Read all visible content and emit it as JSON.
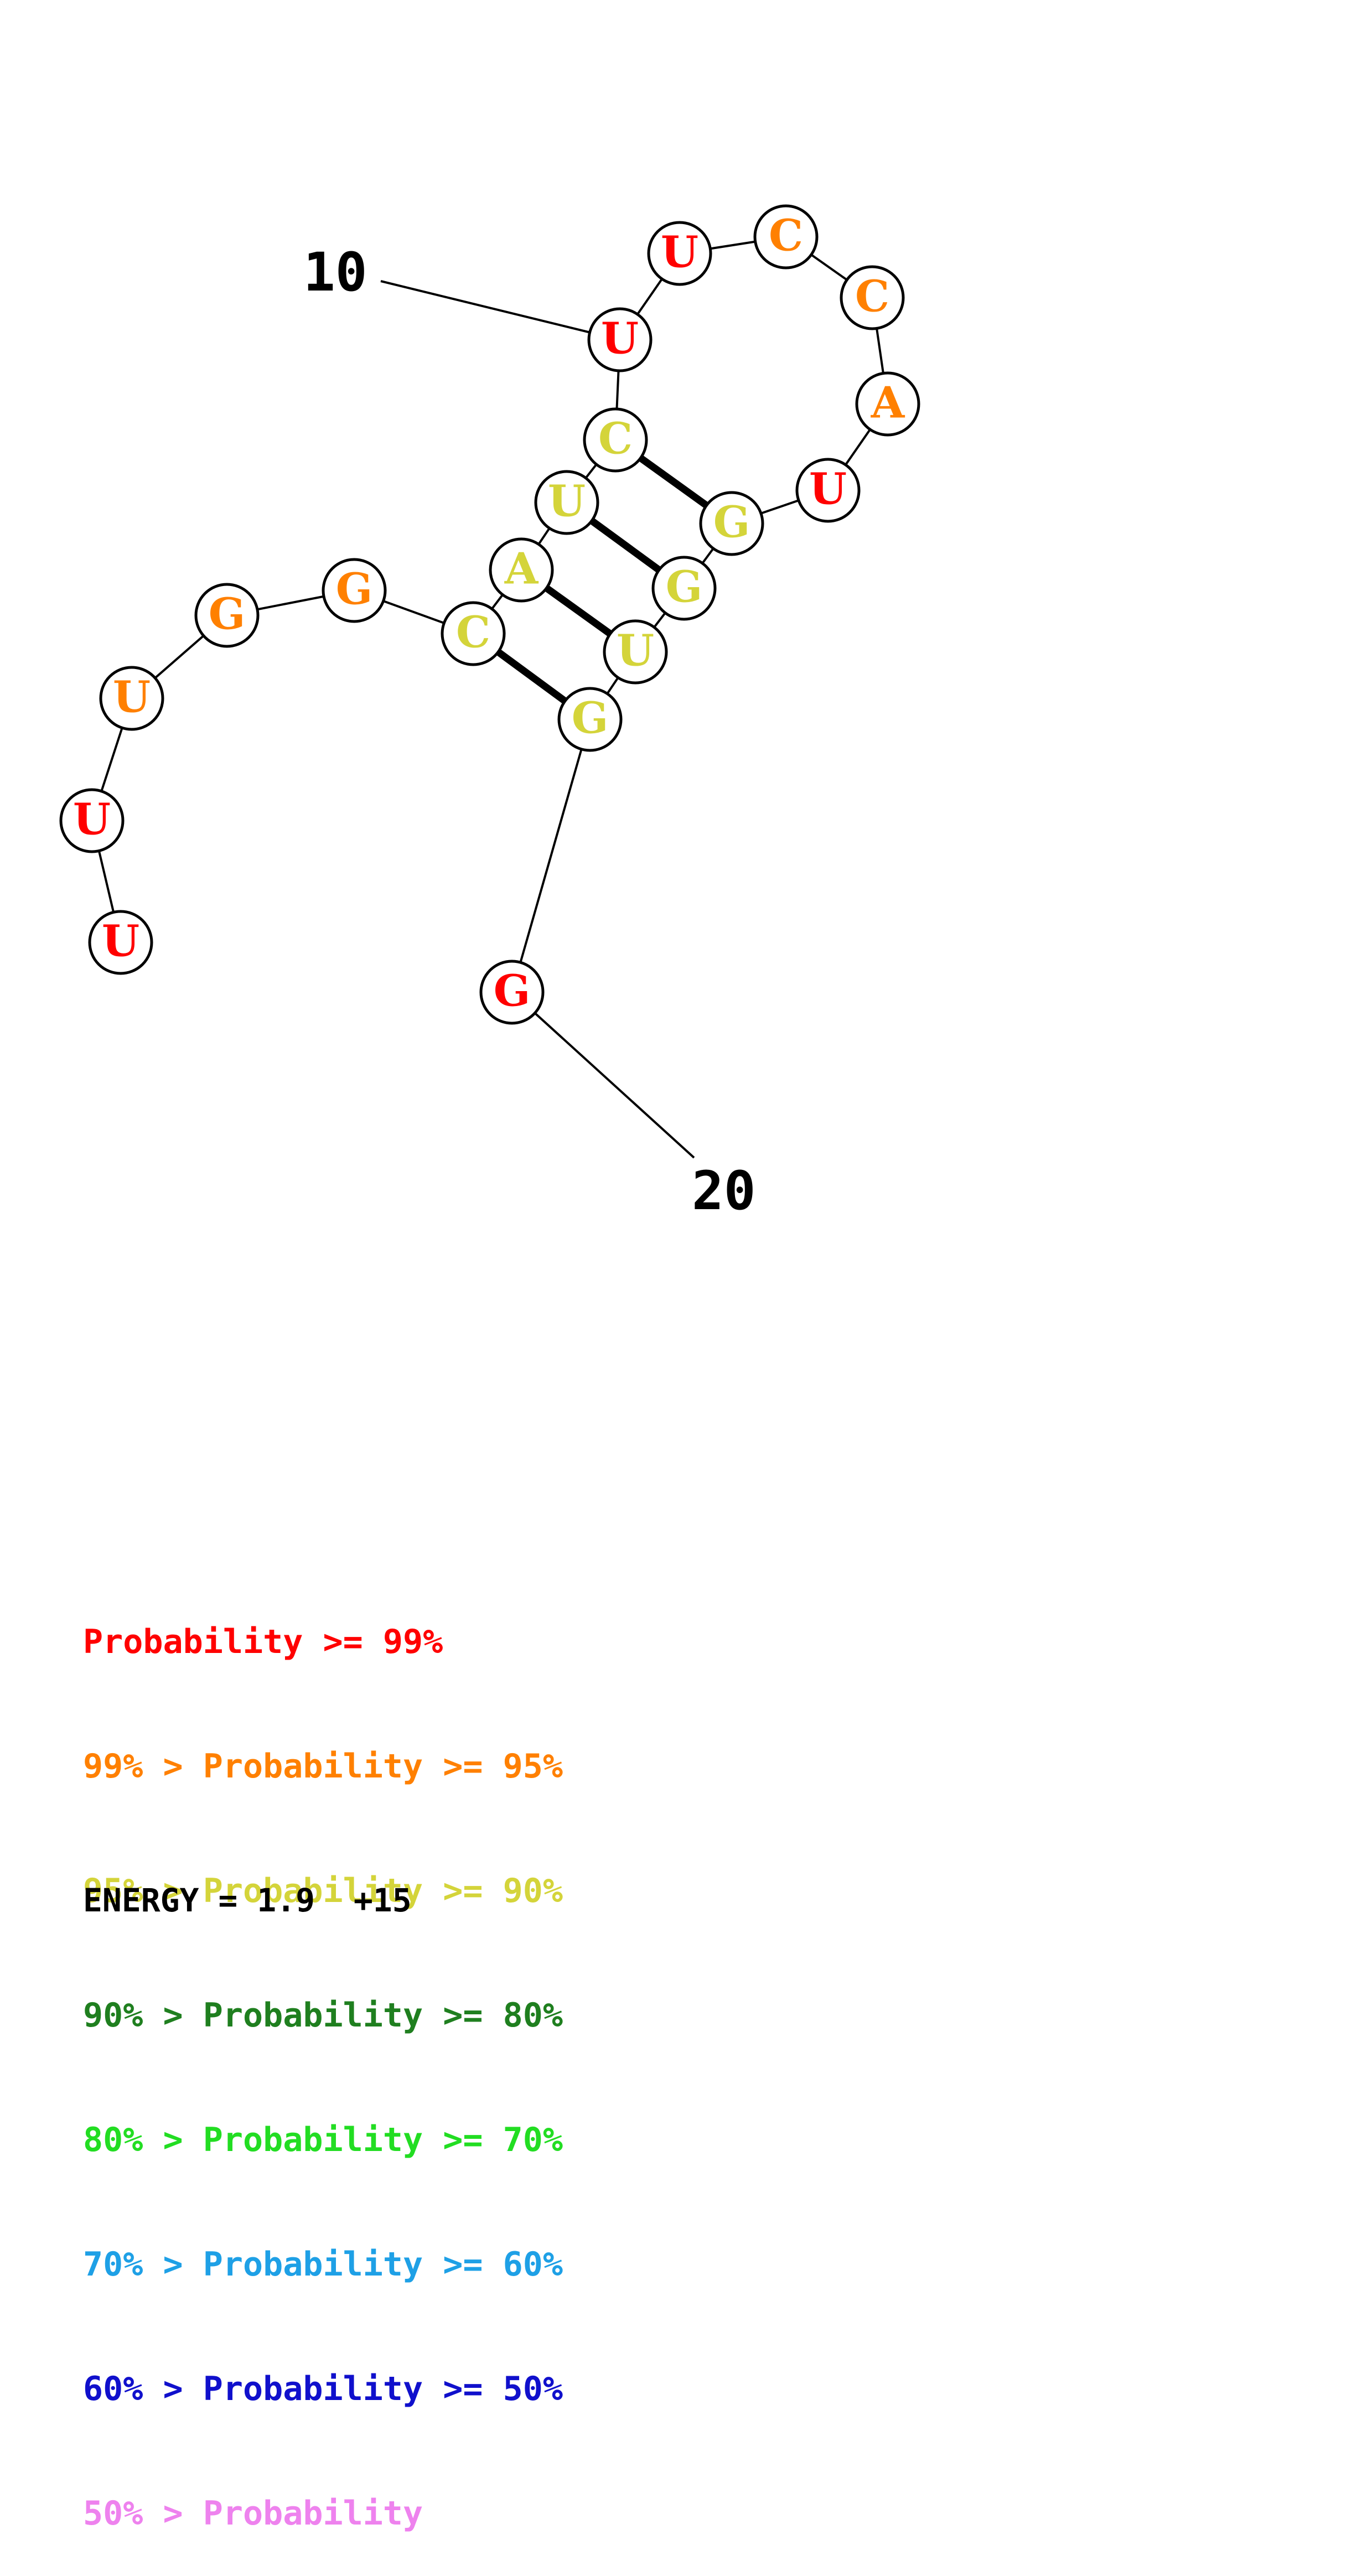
{
  "structure": {
    "nucleotides": [
      {
        "base": "U",
        "color": "#ff0000"
      },
      {
        "base": "U",
        "color": "#ff0000"
      },
      {
        "base": "U",
        "color": "#ff8000"
      },
      {
        "base": "G",
        "color": "#ff8000"
      },
      {
        "base": "G",
        "color": "#ff8000"
      },
      {
        "base": "C",
        "color": "#d4d43a"
      },
      {
        "base": "A",
        "color": "#d4d43a"
      },
      {
        "base": "U",
        "color": "#d4d43a"
      },
      {
        "base": "C",
        "color": "#d4d43a"
      },
      {
        "base": "U",
        "color": "#ff0000"
      },
      {
        "base": "U",
        "color": "#ff0000"
      },
      {
        "base": "C",
        "color": "#ff8000"
      },
      {
        "base": "C",
        "color": "#ff8000"
      },
      {
        "base": "A",
        "color": "#ff8000"
      },
      {
        "base": "U",
        "color": "#ff0000"
      },
      {
        "base": "G",
        "color": "#d4d43a"
      },
      {
        "base": "G",
        "color": "#d4d43a"
      },
      {
        "base": "U",
        "color": "#d4d43a"
      },
      {
        "base": "G",
        "color": "#d4d43a"
      },
      {
        "base": "G",
        "color": "#ff0000"
      }
    ],
    "pairs": [
      [
        6,
        19
      ],
      [
        7,
        18
      ],
      [
        8,
        17
      ],
      [
        9,
        16
      ]
    ],
    "position_labels": [
      {
        "text": "10",
        "position": 10
      },
      {
        "text": "20",
        "position": 20
      }
    ]
  },
  "legend": [
    {
      "prefix": "",
      "label": "Probability >= 99%",
      "color": "#ff0000"
    },
    {
      "prefix": "99% > ",
      "label": "Probability >= 95%",
      "color": "#ff8000"
    },
    {
      "prefix": "95% > ",
      "label": "Probability >= 90%",
      "color": "#d4d43a"
    },
    {
      "prefix": "90% > ",
      "label": "Probability >= 80%",
      "color": "#1f7f1f"
    },
    {
      "prefix": "80% > ",
      "label": "Probability >= 70%",
      "color": "#22dd22"
    },
    {
      "prefix": "70% > ",
      "label": "Probability >= 60%",
      "color": "#1ea0e6"
    },
    {
      "prefix": "60% > ",
      "label": "Probability >= 50%",
      "color": "#1010cc"
    },
    {
      "prefix": "50% > ",
      "label": "Probability",
      "color": "#ee82ee"
    }
  ],
  "energy": "ENERGY = 1.9  +15"
}
